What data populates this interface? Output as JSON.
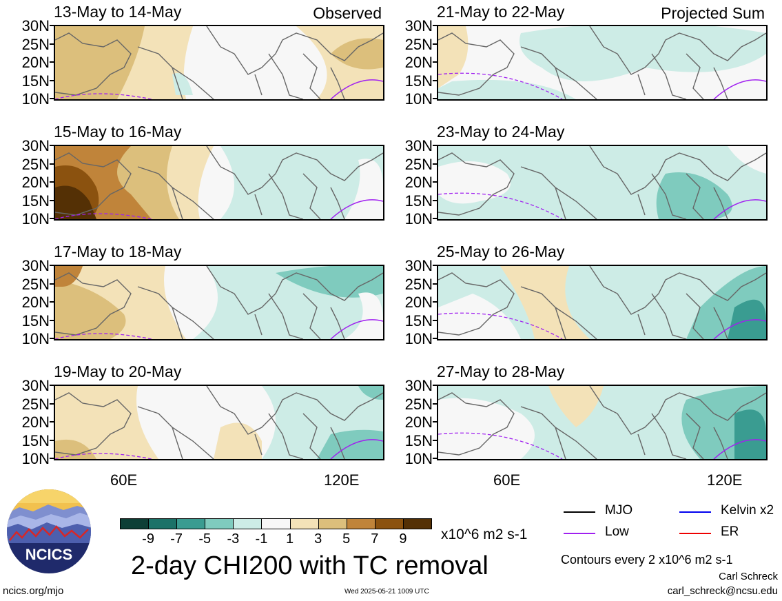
{
  "panels": [
    {
      "title": "13-May to 14-May",
      "label": "Observed",
      "pattern": 0
    },
    {
      "title": "15-May to 16-May",
      "label": "",
      "pattern": 1
    },
    {
      "title": "17-May to 18-May",
      "label": "",
      "pattern": 2
    },
    {
      "title": "19-May to 20-May",
      "label": "",
      "pattern": 3
    },
    {
      "title": "21-May to 22-May",
      "label": "Projected Sum",
      "pattern": 4
    },
    {
      "title": "23-May to 24-May",
      "label": "",
      "pattern": 5
    },
    {
      "title": "25-May to 26-May",
      "label": "",
      "pattern": 6
    },
    {
      "title": "27-May to 28-May",
      "label": "",
      "pattern": 7
    }
  ],
  "lat_labels": [
    "30N",
    "25N",
    "20N",
    "15N",
    "10N"
  ],
  "lon_labels": [
    "60E",
    "120E"
  ],
  "colorbar": {
    "labels": [
      "-9",
      "-7",
      "-5",
      "-3",
      "-1",
      "1",
      "3",
      "5",
      "7",
      "9"
    ],
    "colors": [
      "#0d3f36",
      "#1b7268",
      "#3a9c91",
      "#7fcbbe",
      "#cdece6",
      "#f7f7f7",
      "#f3e2b8",
      "#dcbf7c",
      "#c0843a",
      "#8b520f",
      "#543005"
    ],
    "units": "x10^6 m2 s-1"
  },
  "legend": [
    {
      "label": "MJO",
      "color": "#000000"
    },
    {
      "label": "Kelvin x2",
      "color": "#0000ee"
    },
    {
      "label": "Low",
      "color": "#a020f0"
    },
    {
      "label": "ER",
      "color": "#ee0000"
    }
  ],
  "main_title": "2-day CHI200 with TC removal",
  "contour_note": "Contours every 2 x10^6 m2 s-1",
  "author": "Carl Schreck",
  "email": "carl_schreck@ncsu.edu",
  "site": "ncics.org/mjo",
  "timestamp": "Wed 2025-05-21 1009 UTC",
  "logo_text": "NCICS"
}
